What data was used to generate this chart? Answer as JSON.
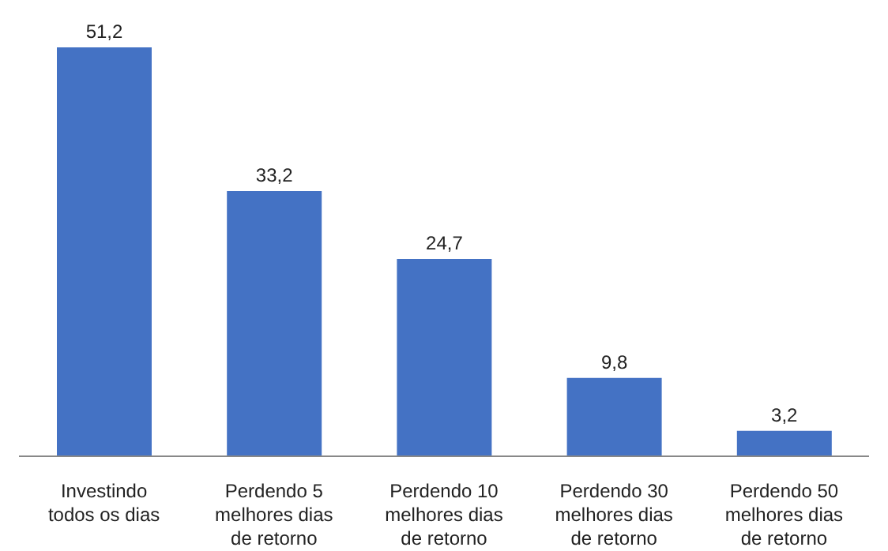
{
  "chart_data": {
    "type": "bar",
    "categories": [
      "Investindo todos os dias",
      "Perdendo 5 melhores dias de retorno",
      "Perdendo 10 melhores dias de retorno",
      "Perdendo 30 melhores dias de retorno",
      "Perdendo 50 melhores dias de retorno"
    ],
    "values": [
      51.2,
      33.2,
      24.7,
      9.8,
      3.2
    ],
    "value_labels": [
      "51,2",
      "33,2",
      "24,7",
      "9,8",
      "3,2"
    ],
    "color": "#4472c4",
    "grid": false,
    "legend": false
  }
}
